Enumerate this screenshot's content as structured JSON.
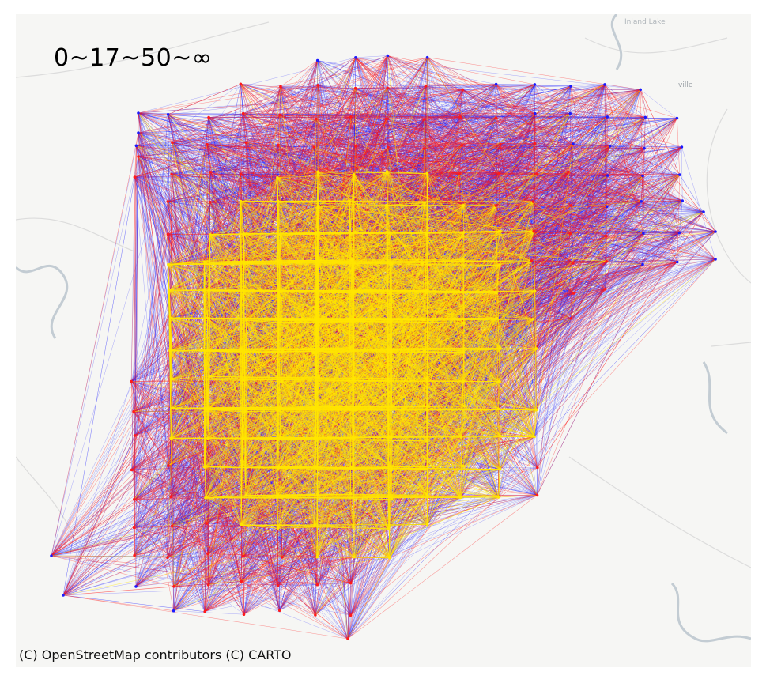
{
  "map": {
    "legend_title": "0~17~50~∞",
    "attribution": "(C) OpenStreetMap contributors (C) CARTO",
    "basemap_labels": {
      "lake": "Inland Lake",
      "town": "ville"
    },
    "flow_classes": [
      {
        "range": "0~17",
        "color": "#1a1aff"
      },
      {
        "range": "17~50",
        "color": "#ff1a1a"
      },
      {
        "range": "50~∞",
        "color": "#ffe600"
      }
    ],
    "colors": {
      "background": "#f6f6f4",
      "roads": "#d9d9d9",
      "water": "#bfc8cf"
    }
  }
}
